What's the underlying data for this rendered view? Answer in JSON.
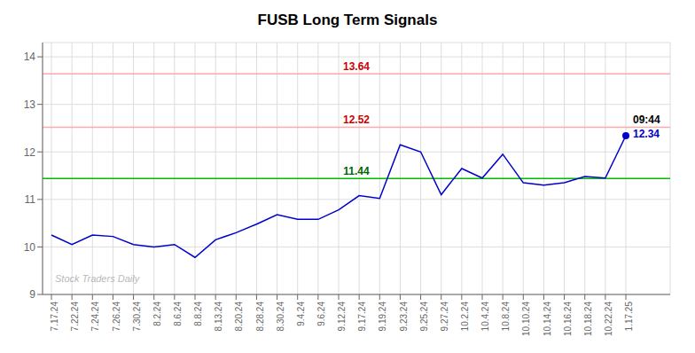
{
  "chart_data": {
    "type": "line",
    "title": "FUSB Long Term Signals",
    "watermark": "Stock Traders Daily",
    "categories": [
      "7.17.24",
      "7.22.24",
      "7.24.24",
      "7.26.24",
      "7.30.24",
      "8.2.24",
      "8.6.24",
      "8.8.24",
      "8.13.24",
      "8.20.24",
      "8.28.24",
      "8.30.24",
      "9.4.24",
      "9.6.24",
      "9.12.24",
      "9.17.24",
      "9.19.24",
      "9.23.24",
      "9.25.24",
      "9.27.24",
      "10.2.24",
      "10.4.24",
      "10.8.24",
      "10.10.24",
      "10.14.24",
      "10.16.24",
      "10.18.24",
      "10.22.24",
      "1.17.25"
    ],
    "values": [
      10.25,
      10.05,
      10.25,
      10.22,
      10.05,
      10.0,
      10.05,
      9.78,
      10.15,
      10.3,
      10.48,
      10.68,
      10.58,
      10.58,
      10.78,
      11.08,
      11.02,
      12.15,
      12.0,
      11.1,
      11.65,
      11.45,
      11.95,
      11.35,
      11.3,
      11.35,
      11.48,
      11.45,
      12.34
    ],
    "color": "#0000cc",
    "reference_lines": [
      {
        "value": 11.44,
        "color": "#00bb00",
        "label": "11.44",
        "label_color": "#006600"
      },
      {
        "value": 12.52,
        "color": "#ffaaaa",
        "label": "12.52",
        "label_color": "#cc0000"
      },
      {
        "value": 13.64,
        "color": "#ffaaaa",
        "label": "13.64",
        "label_color": "#cc0000"
      }
    ],
    "last_point_labels": [
      {
        "text": "09:44",
        "color": "#000000"
      },
      {
        "text": "12.34",
        "color": "#0000cc"
      }
    ],
    "ylim": [
      9.0,
      14.3
    ],
    "yticks": [
      9,
      10,
      11,
      12,
      13,
      14
    ],
    "grid": true
  }
}
